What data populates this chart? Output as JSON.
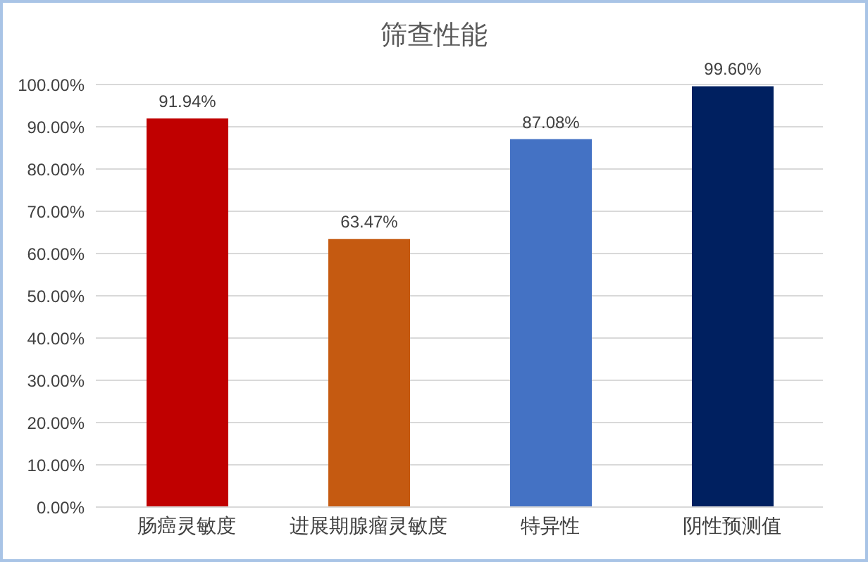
{
  "chart_data": {
    "type": "bar",
    "title": "筛查性能",
    "categories": [
      "肠癌灵敏度",
      "进展期腺瘤灵敏度",
      "特异性",
      "阴性预测值"
    ],
    "values": [
      91.94,
      63.47,
      87.08,
      99.6
    ],
    "colors": [
      "#c00000",
      "#c55a11",
      "#4472c4",
      "#002060"
    ],
    "value_labels": [
      "91.94%",
      "63.47%",
      "87.08%",
      "99.60%"
    ],
    "ylim": [
      0,
      100
    ],
    "yticks": [
      {
        "value": 0,
        "label": "0.00%"
      },
      {
        "value": 10,
        "label": "10.00%"
      },
      {
        "value": 20,
        "label": "20.00%"
      },
      {
        "value": 30,
        "label": "30.00%"
      },
      {
        "value": 40,
        "label": "40.00%"
      },
      {
        "value": 50,
        "label": "50.00%"
      },
      {
        "value": 60,
        "label": "60.00%"
      },
      {
        "value": 70,
        "label": "70.00%"
      },
      {
        "value": 80,
        "label": "80.00%"
      },
      {
        "value": 90,
        "label": "90.00%"
      },
      {
        "value": 100,
        "label": "100.00%"
      }
    ],
    "grid": "y",
    "legend": false
  }
}
